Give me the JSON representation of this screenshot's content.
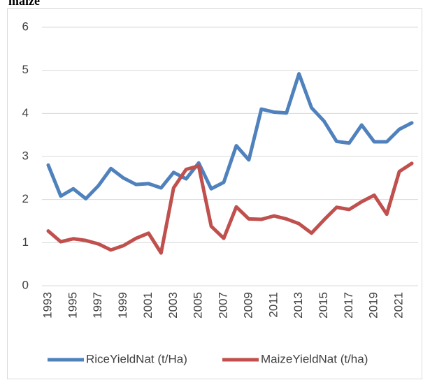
{
  "chart_data": {
    "type": "line",
    "title": "maize",
    "categories": [
      "1993",
      null,
      "1995",
      null,
      "1997",
      null,
      "1999",
      null,
      "2001",
      null,
      "2003",
      null,
      "2005",
      null,
      "2007",
      null,
      "2009",
      null,
      "2011",
      null,
      "2013",
      null,
      "2015",
      null,
      "2017",
      null,
      "2019",
      null,
      "2021",
      null
    ],
    "series": [
      {
        "name": "RiceYieldNat (t/Ha)",
        "color": "#4f81bd",
        "values": [
          2.8,
          2.08,
          2.25,
          2.02,
          2.32,
          2.72,
          2.5,
          2.35,
          2.37,
          2.27,
          2.63,
          2.48,
          2.85,
          2.25,
          2.4,
          3.25,
          2.92,
          4.1,
          4.03,
          4.01,
          4.92,
          4.13,
          3.82,
          3.35,
          3.31,
          3.73,
          3.34,
          3.34,
          3.63,
          3.78
        ]
      },
      {
        "name": "MaizeYieldNat (t/ha)",
        "color": "#c0504d",
        "values": [
          1.27,
          1.02,
          1.09,
          1.05,
          0.97,
          0.83,
          0.93,
          1.1,
          1.22,
          0.76,
          2.27,
          2.7,
          2.78,
          1.38,
          1.1,
          1.83,
          1.55,
          1.54,
          1.62,
          1.55,
          1.44,
          1.22,
          1.53,
          1.82,
          1.77,
          1.95,
          2.1,
          1.66,
          2.65,
          2.84
        ]
      }
    ],
    "ylim": [
      0,
      6
    ],
    "yticks": [
      0,
      1,
      2,
      3,
      4,
      5,
      6
    ],
    "grid": true,
    "legend": "bottom"
  }
}
